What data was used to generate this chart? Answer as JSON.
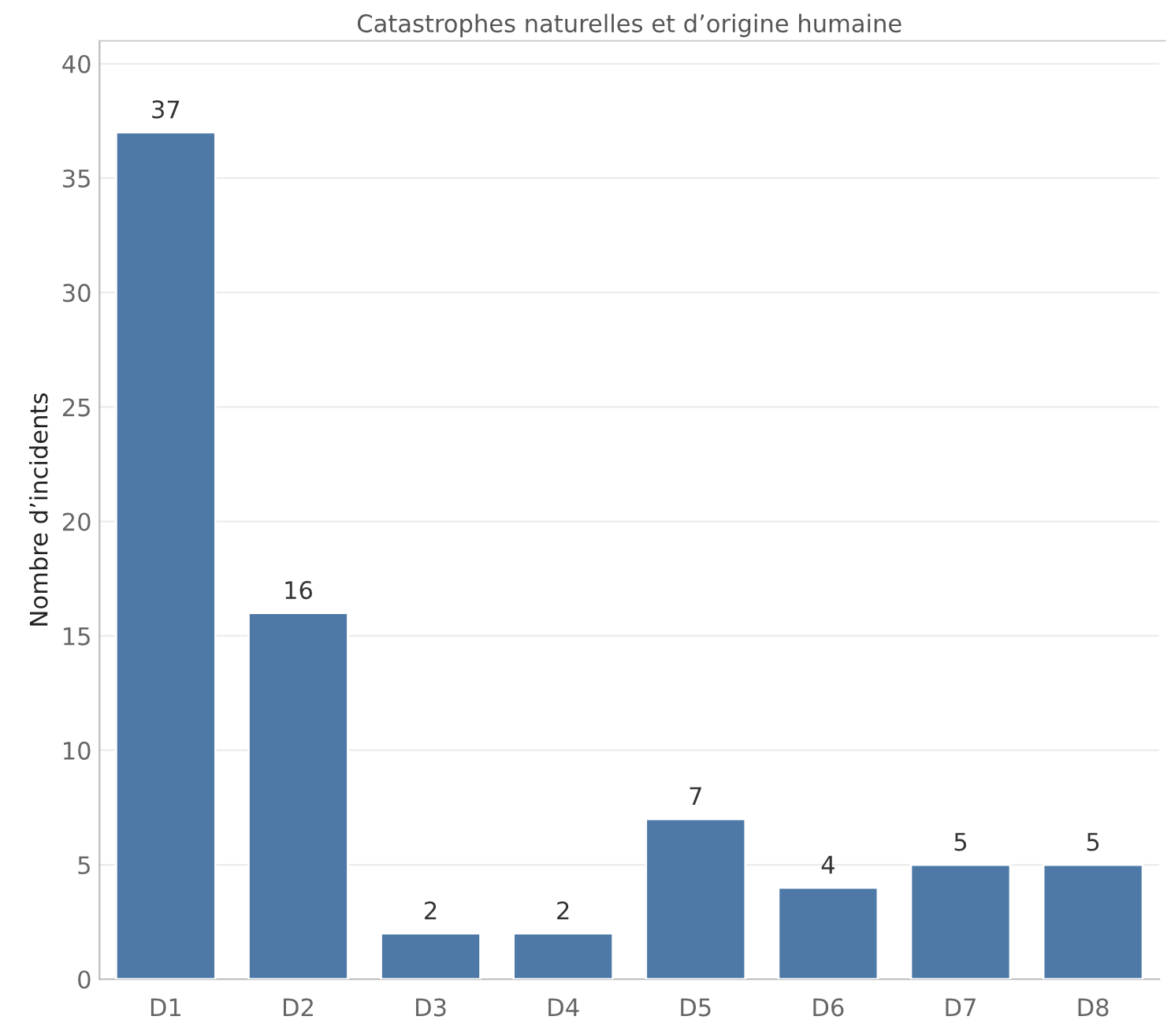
{
  "chart_data": {
    "type": "bar",
    "title": "Catastrophes naturelles et d’origine humaine",
    "ylabel": "Nombre d’incidents",
    "categories": [
      "D1",
      "D2",
      "D3",
      "D4",
      "D5",
      "D6",
      "D7",
      "D8"
    ],
    "values": [
      37,
      16,
      2,
      2,
      7,
      4,
      5,
      5
    ],
    "color": "#4e79a7",
    "ylim": [
      0,
      41
    ],
    "yticks": [
      0,
      5,
      10,
      15,
      20,
      25,
      30,
      35,
      40
    ],
    "grid": "y",
    "data_labels": true,
    "legend": false
  }
}
